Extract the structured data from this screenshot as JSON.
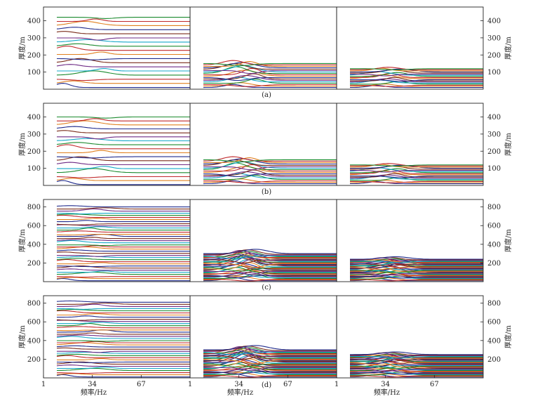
{
  "chart_data": {
    "type": "line",
    "xlabel": "频率/Hz",
    "ylabel": "厚度/m",
    "x_ticks": [
      "1",
      "34",
      "67"
    ],
    "xlim": [
      1,
      100
    ],
    "colors": [
      "#1f2a8c",
      "#e0801f",
      "#c0282b",
      "#1b8a2e",
      "#15a8c8",
      "#6e2a85",
      "#7a2b1a"
    ],
    "rows": [
      {
        "caption": "(a)",
        "ylim": [
          0,
          480
        ],
        "y_ticks": [
          "100",
          "200",
          "300",
          "400"
        ],
        "panels": [
          {
            "base_min": 10,
            "base_max": 420,
            "count": 18,
            "mode": "left"
          },
          {
            "base_min": 10,
            "base_max": 150,
            "count": 18,
            "mode": "mid"
          },
          {
            "base_min": 10,
            "base_max": 120,
            "count": 18,
            "mode": "right"
          }
        ]
      },
      {
        "caption": "(b)",
        "ylim": [
          0,
          480
        ],
        "y_ticks": [
          "100",
          "200",
          "300",
          "400"
        ],
        "panels": [
          {
            "base_min": 5,
            "base_max": 400,
            "count": 18,
            "mode": "left"
          },
          {
            "base_min": 10,
            "base_max": 150,
            "count": 18,
            "mode": "mid"
          },
          {
            "base_min": 10,
            "base_max": 120,
            "count": 18,
            "mode": "right"
          }
        ]
      },
      {
        "caption": "(c)",
        "ylim": [
          0,
          880
        ],
        "y_ticks": [
          "200",
          "400",
          "600",
          "800"
        ],
        "panels": [
          {
            "base_min": 10,
            "base_max": 800,
            "count": 36,
            "mode": "left"
          },
          {
            "base_min": 10,
            "base_max": 300,
            "count": 36,
            "mode": "mid"
          },
          {
            "base_min": 10,
            "base_max": 240,
            "count": 36,
            "mode": "right"
          }
        ]
      },
      {
        "caption": "(d)",
        "ylim": [
          0,
          880
        ],
        "y_ticks": [
          "200",
          "400",
          "600",
          "800"
        ],
        "panels": [
          {
            "base_min": 10,
            "base_max": 810,
            "count": 36,
            "mode": "left"
          },
          {
            "base_min": 10,
            "base_max": 300,
            "count": 36,
            "mode": "mid"
          },
          {
            "base_min": 10,
            "base_max": 250,
            "count": 36,
            "mode": "right"
          }
        ]
      }
    ]
  }
}
